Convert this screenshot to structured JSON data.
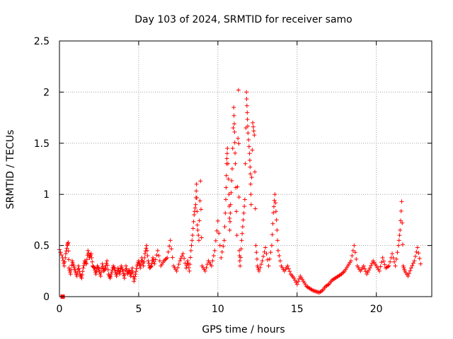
{
  "chart_data": {
    "type": "scatter",
    "title": "Day 103 of 2024, SRMTID for receiver samo",
    "xlabel": "GPS time / hours",
    "ylabel": "SRMTID / TECUs",
    "xlim": [
      0,
      23.5
    ],
    "ylim": [
      0,
      2.5
    ],
    "xticks": [
      0,
      5,
      10,
      15,
      20
    ],
    "xtick_labels": [
      "0",
      "5",
      "10",
      "15",
      "20"
    ],
    "yticks": [
      0,
      0.5,
      1,
      1.5,
      2,
      2.5
    ],
    "ytick_labels": [
      "0",
      "0.5",
      "1",
      "1.5",
      "2",
      "2.5"
    ],
    "grid": true,
    "marker": "+",
    "series_color": "#ff0000",
    "series": [
      {
        "name": "SRMTID",
        "points": [
          [
            0.0,
            0.46
          ],
          [
            0.2,
            0.38
          ],
          [
            0.3,
            0.3
          ],
          [
            0.4,
            0.42
          ],
          [
            0.5,
            0.5
          ],
          [
            0.55,
            0.53
          ],
          [
            0.6,
            0.28
          ],
          [
            0.7,
            0.22
          ],
          [
            0.8,
            0.35
          ],
          [
            0.9,
            0.3
          ],
          [
            1.0,
            0.25
          ],
          [
            1.1,
            0.2
          ],
          [
            1.2,
            0.3
          ],
          [
            1.3,
            0.22
          ],
          [
            1.4,
            0.18
          ],
          [
            1.5,
            0.28
          ],
          [
            1.6,
            0.35
          ],
          [
            1.7,
            0.32
          ],
          [
            1.8,
            0.45
          ],
          [
            1.9,
            0.38
          ],
          [
            2.0,
            0.42
          ],
          [
            2.1,
            0.3
          ],
          [
            2.2,
            0.28
          ],
          [
            2.3,
            0.22
          ],
          [
            2.4,
            0.3
          ],
          [
            2.5,
            0.26
          ],
          [
            2.6,
            0.2
          ],
          [
            2.7,
            0.32
          ],
          [
            2.8,
            0.25
          ],
          [
            2.9,
            0.28
          ],
          [
            3.0,
            0.35
          ],
          [
            3.1,
            0.22
          ],
          [
            3.2,
            0.18
          ],
          [
            3.3,
            0.24
          ],
          [
            3.4,
            0.3
          ],
          [
            3.5,
            0.26
          ],
          [
            3.6,
            0.2
          ],
          [
            3.7,
            0.28
          ],
          [
            3.8,
            0.22
          ],
          [
            3.9,
            0.3
          ],
          [
            4.0,
            0.25
          ],
          [
            4.1,
            0.18
          ],
          [
            4.2,
            0.3
          ],
          [
            4.3,
            0.22
          ],
          [
            4.4,
            0.26
          ],
          [
            4.5,
            0.2
          ],
          [
            4.6,
            0.28
          ],
          [
            4.7,
            0.15
          ],
          [
            4.8,
            0.22
          ],
          [
            4.9,
            0.3
          ],
          [
            5.0,
            0.35
          ],
          [
            5.1,
            0.28
          ],
          [
            5.2,
            0.38
          ],
          [
            5.3,
            0.3
          ],
          [
            5.4,
            0.42
          ],
          [
            5.5,
            0.5
          ],
          [
            5.6,
            0.35
          ],
          [
            5.7,
            0.28
          ],
          [
            5.8,
            0.3
          ],
          [
            5.9,
            0.38
          ],
          [
            6.0,
            0.32
          ],
          [
            6.2,
            0.45
          ],
          [
            6.4,
            0.3
          ],
          [
            6.6,
            0.35
          ],
          [
            6.8,
            0.38
          ],
          [
            7.0,
            0.55
          ],
          [
            7.2,
            0.3
          ],
          [
            7.4,
            0.25
          ],
          [
            7.6,
            0.35
          ],
          [
            7.8,
            0.42
          ],
          [
            8.0,
            0.28
          ],
          [
            8.1,
            0.35
          ],
          [
            8.2,
            0.25
          ],
          [
            8.3,
            0.45
          ],
          [
            8.4,
            0.6
          ],
          [
            8.5,
            0.8
          ],
          [
            8.6,
            0.9
          ],
          [
            8.65,
            1.1
          ],
          [
            8.7,
            0.7
          ],
          [
            8.8,
            0.55
          ],
          [
            8.9,
            1.13
          ],
          [
            9.0,
            0.3
          ],
          [
            9.2,
            0.25
          ],
          [
            9.4,
            0.35
          ],
          [
            9.6,
            0.3
          ],
          [
            9.8,
            0.45
          ],
          [
            10.0,
            0.74
          ],
          [
            10.2,
            0.38
          ],
          [
            10.4,
            0.55
          ],
          [
            10.5,
            0.95
          ],
          [
            10.55,
            1.3
          ],
          [
            10.6,
            1.45
          ],
          [
            10.7,
            1.0
          ],
          [
            10.75,
            0.65
          ],
          [
            10.8,
            0.9
          ],
          [
            10.9,
            1.25
          ],
          [
            11.0,
            1.85
          ],
          [
            11.05,
            1.61
          ],
          [
            11.1,
            1.3
          ],
          [
            11.2,
            0.6
          ],
          [
            11.3,
            2.02
          ],
          [
            11.35,
            0.45
          ],
          [
            11.4,
            0.3
          ],
          [
            11.5,
            0.55
          ],
          [
            11.6,
            0.75
          ],
          [
            11.7,
            0.95
          ],
          [
            11.8,
            2.0
          ],
          [
            11.85,
            1.8
          ],
          [
            11.9,
            1.6
          ],
          [
            12.0,
            1.4
          ],
          [
            12.05,
            1.2
          ],
          [
            12.1,
            0.9
          ],
          [
            12.2,
            1.7
          ],
          [
            12.3,
            1.58
          ],
          [
            12.4,
            0.5
          ],
          [
            12.5,
            0.3
          ],
          [
            12.6,
            0.25
          ],
          [
            12.8,
            0.35
          ],
          [
            13.0,
            0.48
          ],
          [
            13.2,
            0.3
          ],
          [
            13.4,
            0.5
          ],
          [
            13.5,
            0.82
          ],
          [
            13.6,
            1.0
          ],
          [
            13.7,
            0.75
          ],
          [
            13.8,
            0.45
          ],
          [
            14.0,
            0.3
          ],
          [
            14.2,
            0.25
          ],
          [
            14.4,
            0.3
          ],
          [
            14.6,
            0.22
          ],
          [
            14.8,
            0.18
          ],
          [
            15.0,
            0.12
          ],
          [
            15.2,
            0.2
          ],
          [
            15.4,
            0.15
          ],
          [
            15.6,
            0.1
          ],
          [
            15.8,
            0.08
          ],
          [
            16.0,
            0.06
          ],
          [
            16.2,
            0.05
          ],
          [
            16.4,
            0.04
          ],
          [
            16.6,
            0.06
          ],
          [
            16.8,
            0.1
          ],
          [
            17.0,
            0.12
          ],
          [
            17.2,
            0.16
          ],
          [
            17.4,
            0.18
          ],
          [
            17.6,
            0.2
          ],
          [
            17.8,
            0.22
          ],
          [
            18.0,
            0.25
          ],
          [
            18.2,
            0.3
          ],
          [
            18.4,
            0.35
          ],
          [
            18.6,
            0.5
          ],
          [
            18.8,
            0.3
          ],
          [
            19.0,
            0.25
          ],
          [
            19.2,
            0.3
          ],
          [
            19.4,
            0.22
          ],
          [
            19.6,
            0.28
          ],
          [
            19.8,
            0.35
          ],
          [
            20.0,
            0.3
          ],
          [
            20.2,
            0.25
          ],
          [
            20.4,
            0.38
          ],
          [
            20.6,
            0.28
          ],
          [
            20.8,
            0.3
          ],
          [
            21.0,
            0.42
          ],
          [
            21.2,
            0.3
          ],
          [
            21.4,
            0.5
          ],
          [
            21.5,
            0.65
          ],
          [
            21.6,
            0.93
          ],
          [
            21.7,
            0.3
          ],
          [
            21.8,
            0.25
          ],
          [
            22.0,
            0.2
          ],
          [
            22.2,
            0.28
          ],
          [
            22.4,
            0.35
          ],
          [
            22.6,
            0.48
          ],
          [
            22.8,
            0.32
          ]
        ]
      }
    ],
    "isolated_point": [
      0.2,
      0.0
    ]
  }
}
